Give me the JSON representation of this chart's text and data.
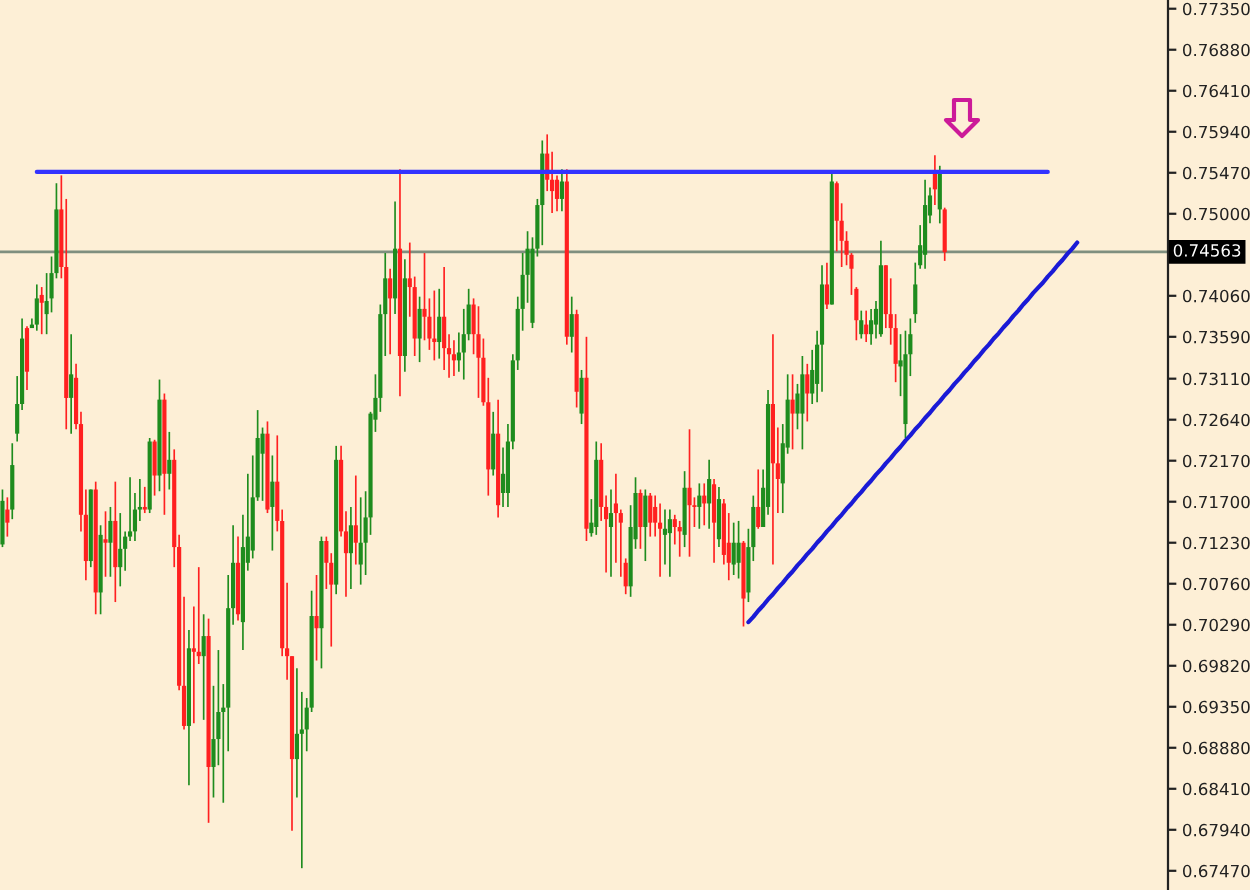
{
  "chart_data": {
    "type": "candlestick",
    "categories": [
      null,
      null,
      null,
      null,
      null,
      null,
      null,
      null,
      null,
      null,
      null,
      null,
      null,
      null,
      null,
      null,
      null,
      null,
      null,
      null,
      null,
      null,
      null,
      null,
      null,
      null,
      null,
      null,
      null,
      null,
      null,
      null,
      null,
      null,
      null,
      null,
      null,
      null,
      null,
      null,
      null,
      null,
      null,
      null,
      null,
      null,
      null,
      null,
      null,
      null,
      null,
      null,
      null,
      null,
      null,
      null,
      null,
      null,
      null,
      null,
      null,
      null,
      null,
      null,
      null,
      null,
      null,
      null,
      null,
      null,
      null,
      null,
      null,
      null,
      null,
      null,
      null,
      null,
      null,
      null,
      null,
      null,
      null,
      null,
      null,
      null,
      null,
      null,
      null,
      null,
      null,
      null,
      null,
      null,
      null,
      null,
      null,
      null,
      null,
      null,
      null,
      null,
      null,
      null,
      null,
      null,
      null,
      null,
      null,
      null,
      null,
      null,
      null,
      null,
      null,
      null,
      null,
      null,
      null,
      null,
      null,
      null,
      null,
      null,
      null,
      null,
      null,
      null,
      null,
      null,
      null,
      null,
      null,
      null,
      null,
      null,
      null,
      null,
      null,
      null,
      null,
      null,
      null,
      null,
      null,
      null,
      null,
      null,
      null,
      null,
      null,
      null,
      null,
      null,
      null,
      null,
      null,
      null,
      null,
      null,
      null,
      null,
      null,
      null,
      null,
      null,
      null,
      null,
      null,
      null,
      null,
      null,
      null,
      null,
      null,
      null,
      null,
      null,
      null,
      null,
      null,
      null,
      null,
      null,
      null,
      null,
      null,
      null,
      null,
      null,
      null,
      null,
      null,
      null,
      null,
      null,
      null,
      null,
      null,
      null,
      null,
      null,
      null,
      null,
      null,
      null,
      null,
      null,
      null,
      null,
      null,
      null,
      null,
      null,
      null,
      null,
      null,
      null,
      null,
      null,
      null,
      null,
      null,
      null,
      null,
      null,
      null,
      null,
      null,
      null,
      null,
      null,
      null,
      null,
      null,
      null,
      null,
      null
    ],
    "ohlc": [
      [
        0.7121,
        0.7184,
        0.7118,
        0.7171
      ],
      [
        0.7161,
        0.7175,
        0.713,
        0.7146
      ],
      [
        0.7161,
        0.7237,
        0.715,
        0.7212
      ],
      [
        0.7248,
        0.7314,
        0.7239,
        0.7282
      ],
      [
        0.7282,
        0.738,
        0.7275,
        0.7357
      ],
      [
        0.7369,
        0.7371,
        0.7298,
        0.7319
      ],
      [
        0.7369,
        0.738,
        0.7369,
        0.7373
      ],
      [
        0.7373,
        0.7419,
        0.7366,
        0.7403
      ],
      [
        0.7407,
        0.7416,
        0.7362,
        0.7398
      ],
      [
        0.7385,
        0.7432,
        0.7362,
        0.74
      ],
      [
        0.7403,
        0.7451,
        0.7387,
        0.7432
      ],
      [
        0.7432,
        0.7535,
        0.7426,
        0.7505
      ],
      [
        0.7505,
        0.7544,
        0.7426,
        0.7439
      ],
      [
        0.7439,
        0.7517,
        0.7253,
        0.7289
      ],
      [
        0.7289,
        0.7362,
        0.7248,
        0.7316
      ],
      [
        0.7312,
        0.7328,
        0.7253,
        0.7259
      ],
      [
        0.7259,
        0.7273,
        0.7136,
        0.7155
      ],
      [
        0.7155,
        0.7184,
        0.708,
        0.7102
      ],
      [
        0.7102,
        0.7184,
        0.7095,
        0.7184
      ],
      [
        0.7184,
        0.7193,
        0.7041,
        0.7066
      ],
      [
        0.7066,
        0.7143,
        0.7041,
        0.7132
      ],
      [
        0.7127,
        0.7159,
        0.7084,
        0.7123
      ],
      [
        0.7123,
        0.7164,
        0.7084,
        0.7148
      ],
      [
        0.7148,
        0.7193,
        0.7055,
        0.7095
      ],
      [
        0.7095,
        0.7157,
        0.7073,
        0.7116
      ],
      [
        0.7116,
        0.7136,
        0.7091,
        0.713
      ],
      [
        0.713,
        0.7198,
        0.7125,
        0.7136
      ],
      [
        0.7136,
        0.718,
        0.7125,
        0.7161
      ],
      [
        0.7161,
        0.7196,
        0.7148,
        0.7164
      ],
      [
        0.7164,
        0.7187,
        0.7157,
        0.7161
      ],
      [
        0.7161,
        0.7243,
        0.7157,
        0.7239
      ],
      [
        0.7239,
        0.7241,
        0.7177,
        0.72
      ],
      [
        0.72,
        0.731,
        0.7182,
        0.7287
      ],
      [
        0.7287,
        0.7294,
        0.7155,
        0.7202
      ],
      [
        0.7202,
        0.725,
        0.7184,
        0.7218
      ],
      [
        0.7218,
        0.723,
        0.7095,
        0.7118
      ],
      [
        0.7118,
        0.7132,
        0.6954,
        0.6959
      ],
      [
        0.6959,
        0.7061,
        0.6909,
        0.6913
      ],
      [
        0.6913,
        0.7023,
        0.6845,
        0.7002
      ],
      [
        0.7002,
        0.705,
        0.6916,
        0.6998
      ],
      [
        0.6998,
        0.7095,
        0.6984,
        0.6993
      ],
      [
        0.6993,
        0.7041,
        0.692,
        0.7016
      ],
      [
        0.7016,
        0.7036,
        0.6802,
        0.6866
      ],
      [
        0.6866,
        0.6959,
        0.6831,
        0.6898
      ],
      [
        0.6898,
        0.7,
        0.6868,
        0.6929
      ],
      [
        0.6929,
        0.6961,
        0.6825,
        0.6934
      ],
      [
        0.6934,
        0.7086,
        0.6884,
        0.7048
      ],
      [
        0.7048,
        0.7143,
        0.7029,
        0.71
      ],
      [
        0.71,
        0.713,
        0.7034,
        0.7041
      ],
      [
        0.7032,
        0.7155,
        0.7,
        0.7118
      ],
      [
        0.71,
        0.7202,
        0.7091,
        0.713
      ],
      [
        0.7114,
        0.7223,
        0.7105,
        0.7175
      ],
      [
        0.7175,
        0.7275,
        0.7171,
        0.7243
      ],
      [
        0.7225,
        0.7255,
        0.7171,
        0.7248
      ],
      [
        0.7248,
        0.7262,
        0.7157,
        0.7161
      ],
      [
        0.7164,
        0.7223,
        0.7114,
        0.7193
      ],
      [
        0.7193,
        0.7246,
        0.7136,
        0.7148
      ],
      [
        0.7148,
        0.7161,
        0.6993,
        0.7002
      ],
      [
        0.7002,
        0.7077,
        0.6966,
        0.6993
      ],
      [
        0.6993,
        0.6993,
        0.6793,
        0.6875
      ],
      [
        0.6875,
        0.6979,
        0.6831,
        0.6904
      ],
      [
        0.6904,
        0.6952,
        0.675,
        0.6909
      ],
      [
        0.6909,
        0.6945,
        0.6884,
        0.6934
      ],
      [
        0.6934,
        0.7068,
        0.6929,
        0.7039
      ],
      [
        0.7039,
        0.7086,
        0.6988,
        0.7025
      ],
      [
        0.7025,
        0.713,
        0.6979,
        0.7125
      ],
      [
        0.7125,
        0.713,
        0.707,
        0.71
      ],
      [
        0.71,
        0.7111,
        0.7004,
        0.7075
      ],
      [
        0.7075,
        0.7234,
        0.7064,
        0.7218
      ],
      [
        0.7218,
        0.7234,
        0.713,
        0.7136
      ],
      [
        0.7136,
        0.7159,
        0.7061,
        0.7111
      ],
      [
        0.7111,
        0.7164,
        0.707,
        0.7143
      ],
      [
        0.7143,
        0.72,
        0.7098,
        0.7123
      ],
      [
        0.7098,
        0.7175,
        0.7075,
        0.7123
      ],
      [
        0.7123,
        0.7182,
        0.7086,
        0.7152
      ],
      [
        0.7152,
        0.7273,
        0.7132,
        0.7271
      ],
      [
        0.7264,
        0.7316,
        0.725,
        0.7289
      ],
      [
        0.7289,
        0.7396,
        0.7273,
        0.7385
      ],
      [
        0.7385,
        0.7455,
        0.7337,
        0.7426
      ],
      [
        0.7426,
        0.7437,
        0.7339,
        0.7403
      ],
      [
        0.7403,
        0.7514,
        0.7385,
        0.746
      ],
      [
        0.746,
        0.7551,
        0.7291,
        0.7337
      ],
      [
        0.7337,
        0.7448,
        0.7319,
        0.7426
      ],
      [
        0.7426,
        0.7467,
        0.7382,
        0.7416
      ],
      [
        0.7416,
        0.7428,
        0.7337,
        0.7357
      ],
      [
        0.7357,
        0.7405,
        0.733,
        0.7391
      ],
      [
        0.7391,
        0.7455,
        0.7355,
        0.7382
      ],
      [
        0.7382,
        0.7403,
        0.7344,
        0.7357
      ],
      [
        0.7357,
        0.7412,
        0.7332,
        0.7353
      ],
      [
        0.7353,
        0.7414,
        0.7334,
        0.7382
      ],
      [
        0.7382,
        0.7439,
        0.7321,
        0.7346
      ],
      [
        0.7346,
        0.7362,
        0.7312,
        0.7339
      ],
      [
        0.7339,
        0.7355,
        0.7314,
        0.7332
      ],
      [
        0.7332,
        0.7364,
        0.7319,
        0.7341
      ],
      [
        0.7341,
        0.7391,
        0.731,
        0.7362
      ],
      [
        0.7362,
        0.7414,
        0.7355,
        0.7396
      ],
      [
        0.7396,
        0.7403,
        0.7339,
        0.7362
      ],
      [
        0.7362,
        0.7394,
        0.7289,
        0.7335
      ],
      [
        0.7335,
        0.7357,
        0.728,
        0.7284
      ],
      [
        0.7284,
        0.7312,
        0.7177,
        0.7207
      ],
      [
        0.7207,
        0.7273,
        0.72,
        0.7248
      ],
      [
        0.7248,
        0.7287,
        0.7152,
        0.7166
      ],
      [
        0.718,
        0.7232,
        0.7164,
        0.7202
      ],
      [
        0.718,
        0.7259,
        0.7164,
        0.7239
      ],
      [
        0.7239,
        0.7339,
        0.723,
        0.7332
      ],
      [
        0.7332,
        0.7405,
        0.7321,
        0.7391
      ],
      [
        0.7391,
        0.7455,
        0.7366,
        0.743
      ],
      [
        0.743,
        0.748,
        0.7398,
        0.746
      ],
      [
        0.7375,
        0.7473,
        0.7369,
        0.746
      ],
      [
        0.746,
        0.7517,
        0.7451,
        0.751
      ],
      [
        0.751,
        0.7584,
        0.7464,
        0.7569
      ],
      [
        0.7569,
        0.7591,
        0.7526,
        0.7539
      ],
      [
        0.7539,
        0.7571,
        0.7501,
        0.7526
      ],
      [
        0.7539,
        0.7544,
        0.7503,
        0.7517
      ],
      [
        0.7517,
        0.7551,
        0.7503,
        0.7537
      ],
      [
        0.7537,
        0.7551,
        0.735,
        0.7359
      ],
      [
        0.7359,
        0.7405,
        0.7341,
        0.7385
      ],
      [
        0.7385,
        0.739,
        0.7278,
        0.7296
      ],
      [
        0.7271,
        0.7321,
        0.7259,
        0.7312
      ],
      [
        0.7312,
        0.7359,
        0.7125,
        0.7139
      ],
      [
        0.7134,
        0.7173,
        0.713,
        0.7146
      ],
      [
        0.7141,
        0.7239,
        0.7132,
        0.7218
      ],
      [
        0.7218,
        0.7237,
        0.7148,
        0.7164
      ],
      [
        0.7164,
        0.7177,
        0.7089,
        0.715
      ],
      [
        0.7141,
        0.7184,
        0.7084,
        0.7157
      ],
      [
        0.7168,
        0.7202,
        0.71,
        0.7157
      ],
      [
        0.7157,
        0.7161,
        0.7084,
        0.7146
      ],
      [
        0.71,
        0.7105,
        0.7064,
        0.7073
      ],
      [
        0.7073,
        0.7166,
        0.7061,
        0.7141
      ],
      [
        0.7127,
        0.7198,
        0.7116,
        0.718
      ],
      [
        0.718,
        0.7184,
        0.7116,
        0.7141
      ],
      [
        0.7141,
        0.7184,
        0.7102,
        0.7177
      ],
      [
        0.7177,
        0.718,
        0.713,
        0.7146
      ],
      [
        0.7164,
        0.7177,
        0.713,
        0.7146
      ],
      [
        0.7146,
        0.7168,
        0.7084,
        0.7139
      ],
      [
        0.7132,
        0.7161,
        0.7098,
        0.7139
      ],
      [
        0.7134,
        0.7161,
        0.7084,
        0.715
      ],
      [
        0.715,
        0.7155,
        0.7121,
        0.7141
      ],
      [
        0.7141,
        0.7148,
        0.7107,
        0.7136
      ],
      [
        0.7132,
        0.7205,
        0.7118,
        0.7186
      ],
      [
        0.7186,
        0.7253,
        0.7107,
        0.7166
      ],
      [
        0.7166,
        0.7175,
        0.7141,
        0.7164
      ],
      [
        0.7164,
        0.7191,
        0.7139,
        0.7177
      ],
      [
        0.7177,
        0.7191,
        0.7143,
        0.7168
      ],
      [
        0.7168,
        0.7218,
        0.7139,
        0.7196
      ],
      [
        0.719,
        0.7196,
        0.71,
        0.7146
      ],
      [
        0.7127,
        0.7187,
        0.7118,
        0.7173
      ],
      [
        0.7168,
        0.7173,
        0.7098,
        0.7109
      ],
      [
        0.7123,
        0.7157,
        0.708,
        0.71
      ],
      [
        0.7098,
        0.7146,
        0.7086,
        0.7123
      ],
      [
        0.71,
        0.7148,
        0.7082,
        0.7123
      ],
      [
        0.7123,
        0.7125,
        0.7027,
        0.7059
      ],
      [
        0.7066,
        0.7139,
        0.7055,
        0.7118
      ],
      [
        0.7118,
        0.7177,
        0.7102,
        0.7164
      ],
      [
        0.7164,
        0.7207,
        0.7139,
        0.7141
      ],
      [
        0.7141,
        0.7207,
        0.7141,
        0.7186
      ],
      [
        0.7164,
        0.7298,
        0.7155,
        0.7282
      ],
      [
        0.7282,
        0.7362,
        0.7098,
        0.7214
      ],
      [
        0.7214,
        0.7255,
        0.7157,
        0.7196
      ],
      [
        0.7191,
        0.7259,
        0.7157,
        0.7237
      ],
      [
        0.7232,
        0.7316,
        0.7225,
        0.7287
      ],
      [
        0.7287,
        0.7316,
        0.723,
        0.7271
      ],
      [
        0.7271,
        0.7305,
        0.7253,
        0.7294
      ],
      [
        0.7271,
        0.7337,
        0.723,
        0.7316
      ],
      [
        0.7316,
        0.7328,
        0.7262,
        0.7294
      ],
      [
        0.7294,
        0.7344,
        0.7282,
        0.7321
      ],
      [
        0.7305,
        0.7366,
        0.7284,
        0.735
      ],
      [
        0.735,
        0.7441,
        0.7296,
        0.7419
      ],
      [
        0.7419,
        0.7444,
        0.7391,
        0.7396
      ],
      [
        0.7396,
        0.7548,
        0.7396,
        0.7537
      ],
      [
        0.7535,
        0.7537,
        0.7457,
        0.7492
      ],
      [
        0.7492,
        0.7512,
        0.7439,
        0.7469
      ],
      [
        0.7469,
        0.748,
        0.7441,
        0.7453
      ],
      [
        0.7453,
        0.7455,
        0.7407,
        0.7437
      ],
      [
        0.7414,
        0.7416,
        0.7355,
        0.7378
      ],
      [
        0.7362,
        0.7389,
        0.7357,
        0.7378
      ],
      [
        0.7373,
        0.7389,
        0.7353,
        0.7362
      ],
      [
        0.7362,
        0.7391,
        0.735,
        0.7378
      ],
      [
        0.7373,
        0.74,
        0.7357,
        0.7391
      ],
      [
        0.7362,
        0.7469,
        0.7359,
        0.7441
      ],
      [
        0.7441,
        0.7441,
        0.7369,
        0.7385
      ],
      [
        0.7385,
        0.7426,
        0.735,
        0.7369
      ],
      [
        0.7369,
        0.7385,
        0.7307,
        0.7328
      ],
      [
        0.7325,
        0.7362,
        0.7291,
        0.7332
      ],
      [
        0.7259,
        0.7366,
        0.7243,
        0.7339
      ],
      [
        0.7339,
        0.738,
        0.7314,
        0.7362
      ],
      [
        0.7385,
        0.7444,
        0.7375,
        0.7419
      ],
      [
        0.7441,
        0.7487,
        0.7437,
        0.7464
      ],
      [
        0.7453,
        0.7539,
        0.7437,
        0.751
      ],
      [
        0.7498,
        0.753,
        0.7489,
        0.7521
      ],
      [
        0.7546,
        0.7567,
        0.751,
        0.7528
      ],
      [
        0.7505,
        0.7555,
        0.7489,
        0.7546
      ],
      [
        0.7505,
        0.7507,
        0.7446,
        0.7456
      ],
      null,
      null,
      null,
      null,
      null,
      null,
      null,
      null,
      null,
      null,
      null,
      null,
      null,
      null,
      null,
      null,
      null,
      null,
      null,
      null,
      null,
      null,
      null,
      null,
      null,
      null,
      null,
      null,
      null,
      null,
      null,
      null,
      null,
      null,
      null,
      null,
      null,
      null,
      null,
      null,
      null,
      null,
      null,
      null,
      null
    ],
    "colors": [
      "#1e8c1e",
      "#ff2020",
      "#1e8c1e",
      "#1e8c1e",
      "#1e8c1e",
      "#ff2020",
      "#1e8c1e",
      "#1e8c1e",
      "#ff2020",
      "#1e8c1e",
      "#1e8c1e",
      "#1e8c1e",
      "#ff2020",
      "#ff2020",
      "#1e8c1e",
      "#ff2020",
      "#ff2020",
      "#ff2020",
      "#1e8c1e",
      "#ff2020",
      "#1e8c1e",
      "#ff2020",
      "#1e8c1e",
      "#ff2020",
      "#1e8c1e",
      "#1e8c1e",
      "#1e8c1e",
      "#1e8c1e",
      "#1e8c1e",
      "#ff2020",
      "#1e8c1e",
      "#ff2020",
      "#1e8c1e",
      "#ff2020",
      "#1e8c1e",
      "#ff2020",
      "#ff2020",
      "#ff2020",
      "#1e8c1e",
      "#ff2020",
      "#ff2020",
      "#1e8c1e",
      "#ff2020",
      "#1e8c1e",
      "#1e8c1e",
      "#1e8c1e",
      "#1e8c1e",
      "#1e8c1e",
      "#ff2020",
      "#1e8c1e",
      "#1e8c1e",
      "#1e8c1e",
      "#1e8c1e",
      "#1e8c1e",
      "#ff2020",
      "#1e8c1e",
      "#ff2020",
      "#ff2020",
      "#ff2020",
      "#ff2020",
      "#1e8c1e",
      "#1e8c1e",
      "#1e8c1e",
      "#1e8c1e",
      "#ff2020",
      "#1e8c1e",
      "#ff2020",
      "#ff2020",
      "#1e8c1e",
      "#ff2020",
      "#ff2020",
      "#1e8c1e",
      "#ff2020",
      "#1e8c1e",
      "#1e8c1e",
      "#1e8c1e",
      "#1e8c1e",
      "#1e8c1e",
      "#1e8c1e",
      "#ff2020",
      "#1e8c1e",
      "#ff2020",
      "#1e8c1e",
      "#ff2020",
      "#ff2020",
      "#1e8c1e",
      "#ff2020",
      "#ff2020",
      "#ff2020",
      "#1e8c1e",
      "#ff2020",
      "#ff2020",
      "#ff2020",
      "#1e8c1e",
      "#1e8c1e",
      "#1e8c1e",
      "#ff2020",
      "#ff2020",
      "#ff2020",
      "#ff2020",
      "#1e8c1e",
      "#ff2020",
      "#1e8c1e",
      "#1e8c1e",
      "#1e8c1e",
      "#1e8c1e",
      "#1e8c1e",
      "#1e8c1e",
      "#1e8c1e",
      "#1e8c1e",
      "#1e8c1e",
      "#ff2020",
      "#ff2020",
      "#ff2020",
      "#1e8c1e",
      "#ff2020",
      "#1e8c1e",
      "#ff2020",
      "#1e8c1e",
      "#ff2020",
      "#1e8c1e",
      "#1e8c1e",
      "#ff2020",
      "#ff2020",
      "#1e8c1e",
      "#ff2020",
      "#ff2020",
      "#ff2020",
      "#1e8c1e",
      "#1e8c1e",
      "#ff2020",
      "#1e8c1e",
      "#ff2020",
      "#ff2020",
      "#ff2020",
      "#1e8c1e",
      "#1e8c1e",
      "#ff2020",
      "#ff2020",
      "#1e8c1e",
      "#ff2020",
      "#ff2020",
      "#1e8c1e",
      "#ff2020",
      "#1e8c1e",
      "#ff2020",
      "#1e8c1e",
      "#ff2020",
      "#ff2020",
      "#1e8c1e",
      "#1e8c1e",
      "#ff2020",
      "#1e8c1e",
      "#1e8c1e",
      "#ff2020",
      "#1e8c1e",
      "#1e8c1e",
      "#ff2020",
      "#ff2020",
      "#1e8c1e",
      "#1e8c1e",
      "#ff2020",
      "#1e8c1e",
      "#1e8c1e",
      "#ff2020",
      "#1e8c1e",
      "#1e8c1e",
      "#1e8c1e",
      "#ff2020",
      "#1e8c1e",
      "#ff2020",
      "#ff2020",
      "#ff2020",
      "#ff2020",
      "#ff2020",
      "#1e8c1e",
      "#ff2020",
      "#1e8c1e",
      "#1e8c1e",
      "#1e8c1e",
      "#ff2020",
      "#ff2020",
      "#ff2020",
      "#1e8c1e",
      "#1e8c1e",
      "#1e8c1e",
      "#1e8c1e",
      "#1e8c1e",
      "#1e8c1e",
      "#1e8c1e",
      "#ff2020",
      "#1e8c1e",
      "#ff2020",
      null,
      null,
      null,
      null,
      null,
      null,
      null,
      null,
      null,
      null,
      null,
      null,
      null,
      null,
      null,
      null,
      null,
      null,
      null,
      null,
      null,
      null,
      null,
      null,
      null,
      null,
      null,
      null,
      null,
      null,
      null,
      null,
      null,
      null,
      null,
      null,
      null,
      null,
      null,
      null,
      null,
      null,
      null,
      null,
      null
    ],
    "series": [
      {
        "type": "line",
        "color": "#3333ff",
        "values": [
          null,
          null,
          null,
          null,
          null,
          null,
          null,
          0.7548,
          0.7548,
          0.7548,
          0.7548,
          0.7548,
          0.7548,
          0.7548,
          0.7548,
          0.7548,
          0.7548,
          0.7548,
          0.7548,
          0.7548,
          0.7548,
          0.7548,
          0.7548,
          0.7548,
          0.7548,
          0.7548,
          0.7548,
          0.7548,
          0.7548,
          0.7548,
          0.7548,
          0.7548,
          0.7548,
          0.7548,
          0.7548,
          0.7548,
          0.7548,
          0.7548,
          0.7548,
          0.7548,
          0.7548,
          0.7548,
          0.7548,
          0.7548,
          0.7548,
          0.7548,
          0.7548,
          0.7548,
          0.7548,
          0.7548,
          0.7548,
          0.7548,
          0.7548,
          0.7548,
          0.7548,
          0.7548,
          0.7548,
          0.7548,
          0.7548,
          0.7548,
          0.7548,
          0.7548,
          0.7548,
          0.7548,
          0.7548,
          0.7548,
          0.7548,
          0.7548,
          0.7548,
          0.7548,
          0.7548,
          0.7548,
          0.7548,
          0.7548,
          0.7548,
          0.7548,
          0.7548,
          0.7548,
          0.7548,
          0.7548,
          0.7548,
          0.7548,
          0.7548,
          0.7548,
          0.7548,
          0.7548,
          0.7548,
          0.7548,
          0.7548,
          0.7548,
          0.7548,
          0.7548,
          0.7548,
          0.7548,
          0.7548,
          0.7548,
          0.7548,
          0.7548,
          0.7548,
          0.7548,
          0.7548,
          0.7548,
          0.7548,
          0.7548,
          0.7548,
          0.7548,
          0.7548,
          0.7548,
          0.7548,
          0.7548,
          0.7548,
          0.7548,
          0.7548,
          0.7548,
          0.7548,
          0.7548,
          0.7548,
          0.7548,
          0.7548,
          0.7548,
          0.7548,
          0.7548,
          0.7548,
          0.7548,
          0.7548,
          0.7548,
          0.7548,
          0.7548,
          0.7548,
          0.7548,
          0.7548,
          0.7548,
          0.7548,
          0.7548,
          0.7548,
          0.7548,
          0.7548,
          0.7548,
          0.7548,
          0.7548,
          0.7548,
          0.7548,
          0.7548,
          0.7548,
          0.7548,
          0.7548,
          0.7548,
          0.7548,
          0.7548,
          0.7548,
          0.7548,
          0.7548,
          0.7548,
          0.7548,
          0.7548,
          0.7548,
          0.7548,
          0.7548,
          0.7548,
          0.7548,
          0.7548,
          0.7548,
          0.7548,
          0.7548,
          0.7548,
          0.7548,
          0.7548,
          0.7548,
          0.7548,
          0.7548,
          0.7548,
          0.7548,
          0.7548,
          0.7548,
          0.7548,
          0.7548,
          0.7548,
          0.7548,
          0.7548,
          0.7548,
          0.7548,
          0.7548,
          0.7548,
          0.7548,
          0.7548,
          0.7548,
          0.7548,
          0.7548,
          0.7548,
          0.7548,
          0.7548,
          0.7548,
          0.7548,
          0.7548,
          0.7548,
          0.7548,
          0.7548,
          0.7548,
          0.7548,
          0.7548,
          0.7548,
          0.7548,
          0.7548,
          0.7548,
          0.7548,
          0.7548,
          0.7548,
          0.7548,
          0.7548,
          0.7548,
          0.7548,
          0.7548,
          0.7548,
          0.7548,
          null,
          null,
          null,
          null,
          null,
          null,
          null,
          null,
          null,
          null,
          null,
          null,
          null,
          null,
          null,
          null,
          null,
          null,
          null,
          null,
          null,
          null,
          null,
          null
        ]
      },
      {
        "type": "line",
        "color": "#1a1ad6",
        "values": [
          null,
          null,
          null,
          null,
          null,
          null,
          null,
          null,
          null,
          null,
          null,
          null,
          null,
          null,
          null,
          null,
          null,
          null,
          null,
          null,
          null,
          null,
          null,
          null,
          null,
          null,
          null,
          null,
          null,
          null,
          null,
          null,
          null,
          null,
          null,
          null,
          null,
          null,
          null,
          null,
          null,
          null,
          null,
          null,
          null,
          null,
          null,
          null,
          null,
          null,
          null,
          null,
          null,
          null,
          null,
          null,
          null,
          null,
          null,
          null,
          null,
          null,
          null,
          null,
          null,
          null,
          null,
          null,
          null,
          null,
          null,
          null,
          null,
          null,
          null,
          null,
          null,
          null,
          null,
          null,
          null,
          null,
          null,
          null,
          null,
          null,
          null,
          null,
          null,
          null,
          null,
          null,
          null,
          null,
          null,
          null,
          null,
          null,
          null,
          null,
          null,
          null,
          null,
          null,
          null,
          null,
          null,
          null,
          null,
          null,
          null,
          null,
          null,
          null,
          null,
          null,
          null,
          null,
          null,
          null,
          null,
          null,
          null,
          null,
          null,
          null,
          null,
          null,
          null,
          null,
          null,
          null,
          null,
          null,
          null,
          null,
          null,
          null,
          null,
          null,
          null,
          null,
          null,
          null,
          null,
          null,
          null,
          null,
          null,
          null,
          null,
          null,
          0.7032,
          0.7038,
          0.7045,
          0.7051,
          0.7058,
          0.7064,
          0.7071,
          0.7077,
          0.7084,
          0.709,
          0.7097,
          0.7103,
          0.711,
          0.7116,
          0.7123,
          0.7129,
          0.7136,
          0.7142,
          0.7149,
          0.7155,
          0.7162,
          0.7168,
          0.7175,
          0.7181,
          0.7188,
          0.7194,
          0.7201,
          0.7207,
          0.7214,
          0.722,
          0.7227,
          0.7233,
          0.724,
          0.7246,
          0.7253,
          0.7259,
          0.7266,
          0.7272,
          0.7279,
          0.7285,
          0.7292,
          0.7298,
          0.7305,
          0.7311,
          0.7318,
          0.7324,
          0.7331,
          0.7337,
          0.7344,
          0.735,
          0.7357,
          0.7363,
          0.737,
          0.7376,
          0.7383,
          0.7389,
          0.7396,
          0.7402,
          0.7409,
          0.7415,
          0.7421,
          0.7428,
          0.7434,
          0.7441,
          0.7447,
          0.7454,
          0.746,
          0.7467,
          null,
          null,
          null,
          null,
          null,
          null,
          null,
          null,
          null,
          null,
          null,
          null,
          null,
          null,
          null,
          null,
          null,
          null
        ]
      }
    ],
    "ylim": [
      0.6725,
      0.7745
    ],
    "yticks": [
      {
        "value": 0.7735,
        "label": "0.77350"
      },
      {
        "value": 0.7688,
        "label": "0.76880"
      },
      {
        "value": 0.7641,
        "label": "0.76410"
      },
      {
        "value": 0.7594,
        "label": "0.75940"
      },
      {
        "value": 0.7547,
        "label": "0.75470"
      },
      {
        "value": 0.75,
        "label": "0.75000"
      },
      {
        "value": 0.7406,
        "label": "0.74060"
      },
      {
        "value": 0.7359,
        "label": "0.73590"
      },
      {
        "value": 0.7311,
        "label": "0.73110"
      },
      {
        "value": 0.7264,
        "label": "0.72640"
      },
      {
        "value": 0.7217,
        "label": "0.72170"
      },
      {
        "value": 0.717,
        "label": "0.71700"
      },
      {
        "value": 0.7123,
        "label": "0.71230"
      },
      {
        "value": 0.7076,
        "label": "0.70760"
      },
      {
        "value": 0.7029,
        "label": "0.70290"
      },
      {
        "value": 0.6982,
        "label": "0.69820"
      },
      {
        "value": 0.6935,
        "label": "0.69350"
      },
      {
        "value": 0.6888,
        "label": "0.68880"
      },
      {
        "value": 0.6841,
        "label": "0.68410"
      },
      {
        "value": 0.6794,
        "label": "0.67940"
      },
      {
        "value": 0.6747,
        "label": "0.67470"
      }
    ],
    "ref_lines": [
      {
        "axis": "y",
        "value": 0.74563,
        "label": "0.74563",
        "color": "#7f8f7f"
      }
    ],
    "tick_labels": "y",
    "grid": false,
    "legend": false
  }
}
